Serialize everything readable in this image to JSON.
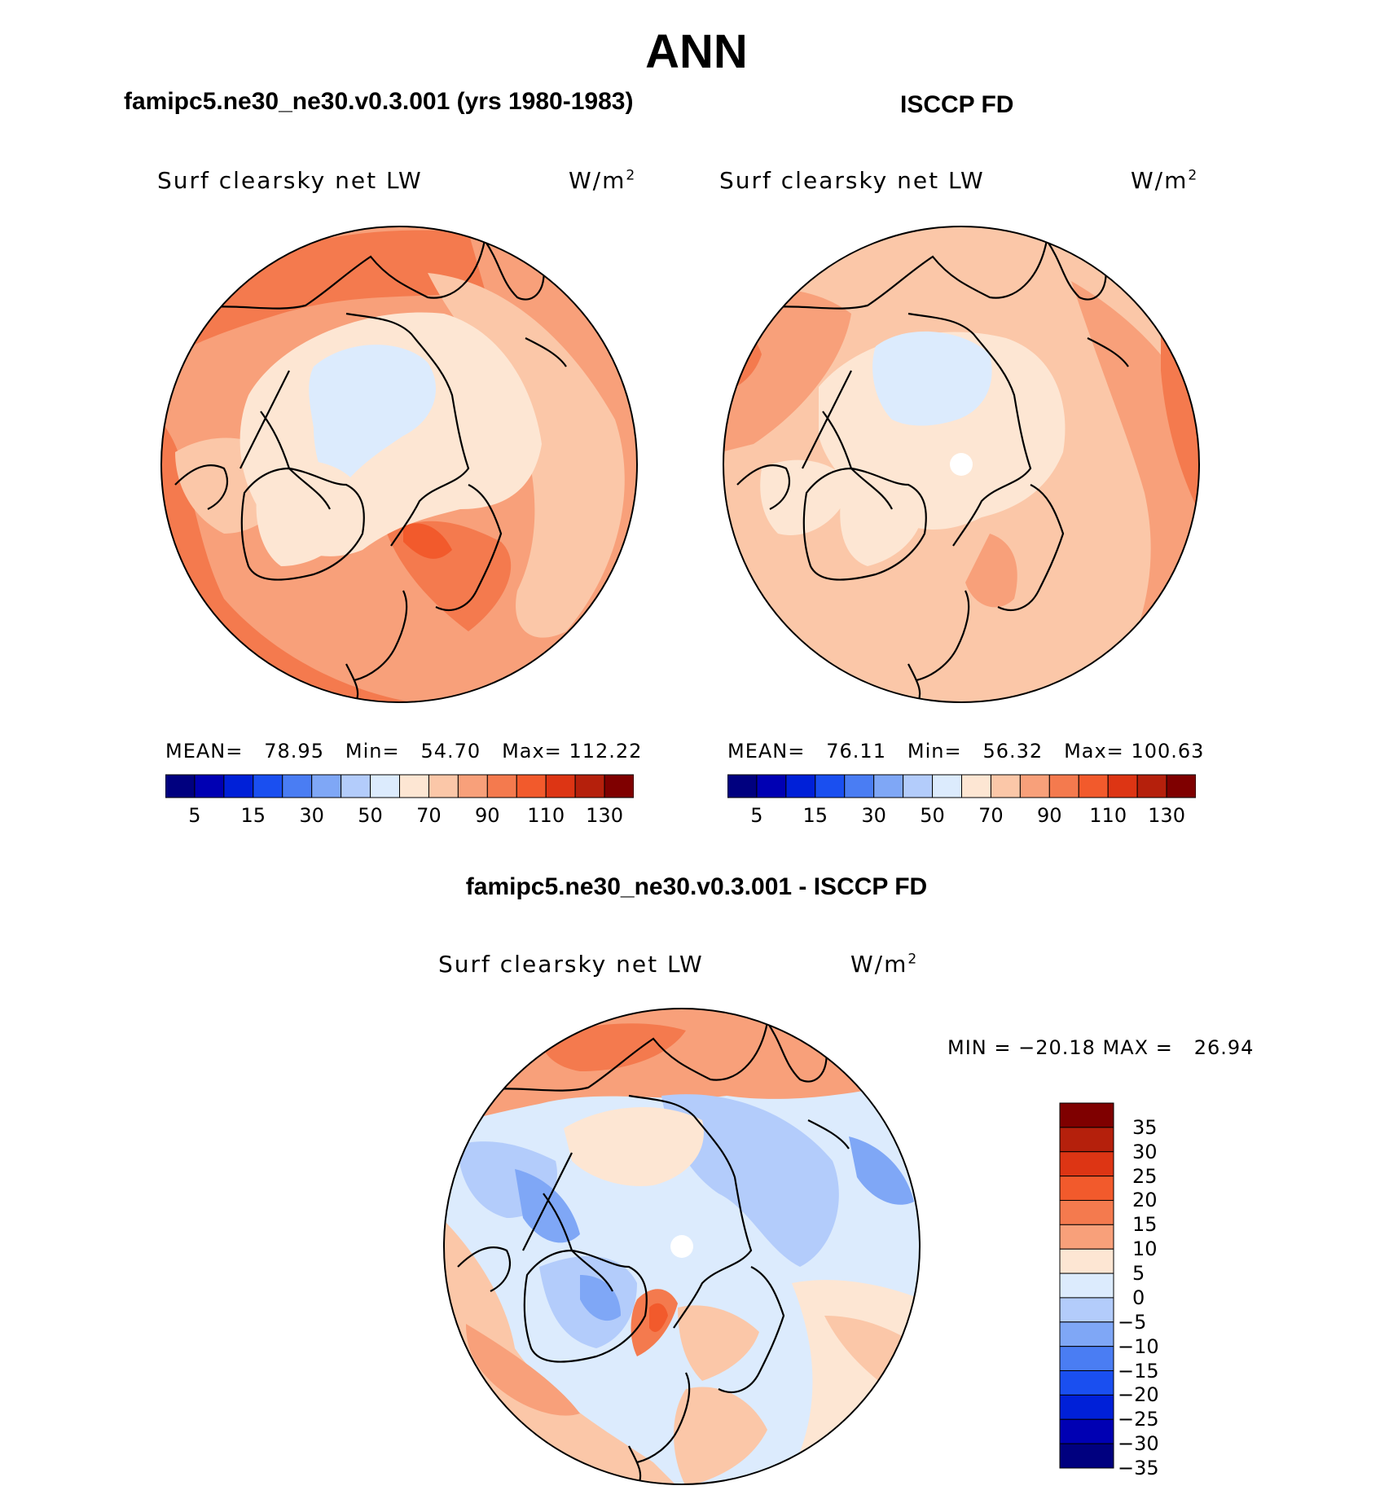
{
  "title": "ANN",
  "panels": [
    {
      "case_title": "famipc5.ne30_ne30.v0.3.001 (yrs 1980-1983)",
      "variable": "Surf clearsky net LW",
      "units": "W/m",
      "units_exp": "2",
      "stats": {
        "mean_label": "MEAN=",
        "mean": "78.95",
        "min_label": "Min=",
        "min": "54.70",
        "max_label": "Max=",
        "max": "112.22"
      }
    },
    {
      "case_title": "ISCCP FD",
      "variable": "Surf clearsky net LW",
      "units": "W/m",
      "units_exp": "2",
      "stats": {
        "mean_label": "MEAN=",
        "mean": "76.11",
        "min_label": "Min=",
        "min": "56.32",
        "max_label": "Max=",
        "max": "100.63"
      }
    }
  ],
  "diff_panel": {
    "case_title": "famipc5.ne30_ne30.v0.3.001 - ISCCP FD",
    "variable": "Surf clearsky net LW",
    "units": "W/m",
    "units_exp": "2",
    "minmax": "MIN = −20.18 MAX =   26.94"
  },
  "colorbar_abs": {
    "colors": [
      "#00007f",
      "#0000b3",
      "#0020d8",
      "#1a4ff0",
      "#4a7df3",
      "#7fa7f6",
      "#b3ccfb",
      "#dcebfd",
      "#fde6d3",
      "#fbc7a8",
      "#f8a07a",
      "#f47a4e",
      "#f25a2c",
      "#dd3514",
      "#b5200c",
      "#7f0000"
    ],
    "ticks": [
      "5",
      "15",
      "30",
      "50",
      "70",
      "90",
      "110",
      "130"
    ]
  },
  "colorbar_diff": {
    "colors_top_to_bottom": [
      "#7f0000",
      "#b5200c",
      "#dd3514",
      "#f25a2c",
      "#f47a4e",
      "#f8a07a",
      "#fde6d3",
      "#dcebfd",
      "#b3ccfb",
      "#7fa7f6",
      "#4a7df3",
      "#1a4ff0",
      "#0020d8",
      "#0000b3",
      "#00007f"
    ],
    "ticks": [
      "35",
      "30",
      "25",
      "20",
      "15",
      "10",
      "5",
      "0",
      "−5",
      "−10",
      "−15",
      "−20",
      "−25",
      "−30",
      "−35"
    ]
  },
  "colors": {
    "coast": "#000000"
  }
}
